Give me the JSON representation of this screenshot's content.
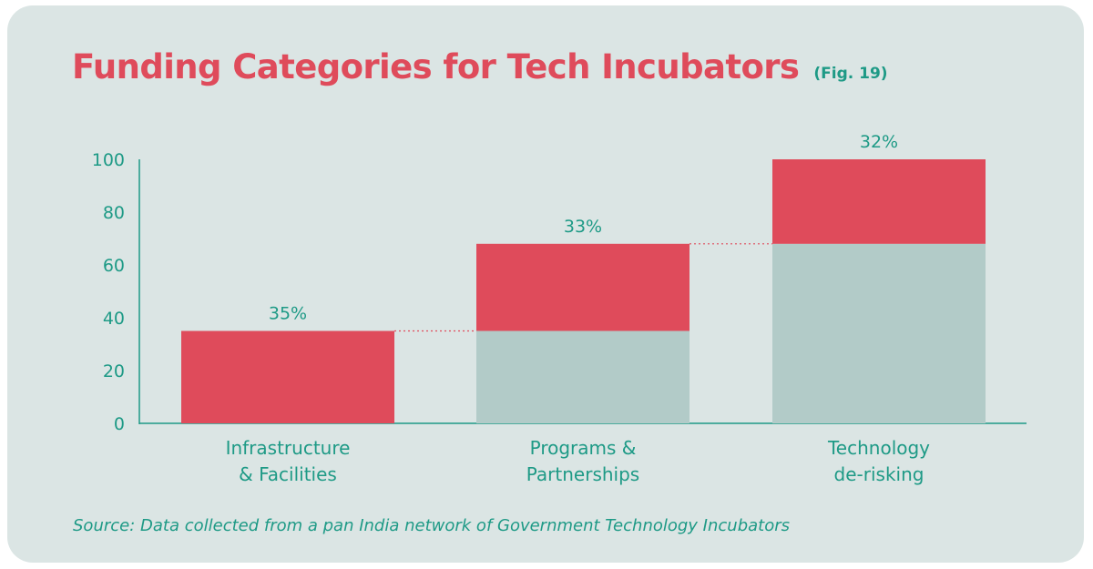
{
  "header": {
    "title": "Funding Categories for Tech Incubators",
    "fig_label": "(Fig. 19)"
  },
  "source": "Source: Data collected from a pan India network of Government Technology Incubators",
  "colors": {
    "increment": "#df4b5b",
    "base": "#b2cbc8",
    "text_accent": "#1e9a86",
    "connector": "#df4b5b",
    "background": "#dbe5e4"
  },
  "chart_data": {
    "type": "bar",
    "subtype": "waterfall",
    "title": "Funding Categories for Tech Incubators",
    "categories": [
      [
        "Infrastructure",
        "& Facilities"
      ],
      [
        "Programs &",
        "Partnerships"
      ],
      [
        "Technology",
        "de-risking"
      ]
    ],
    "series": [
      {
        "values": [
          35,
          33,
          32
        ]
      }
    ],
    "data_labels": [
      "35%",
      "33%",
      "32%"
    ],
    "cumulative_base": [
      0,
      35,
      68
    ],
    "ylim": [
      0,
      100
    ],
    "yticks": [
      0,
      20,
      40,
      60,
      80,
      100
    ],
    "xlabel": "",
    "ylabel": "",
    "grid": false,
    "connector_lines": "dotted"
  }
}
